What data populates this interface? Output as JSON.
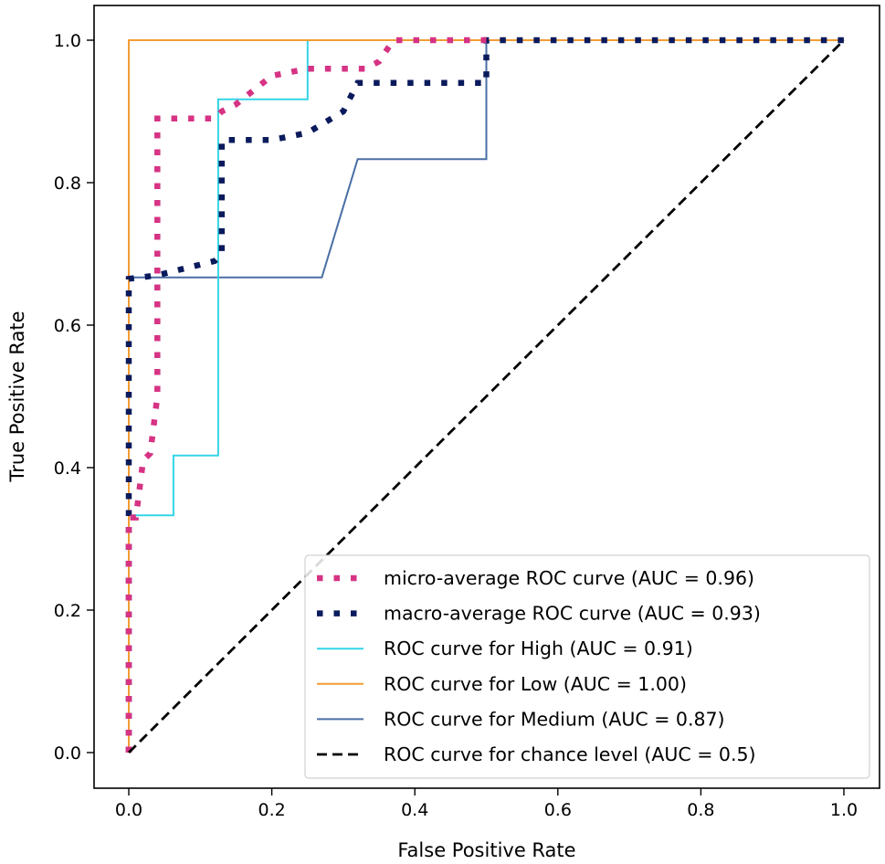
{
  "chart_data": {
    "type": "line",
    "title": "",
    "xlabel": "False Positive Rate",
    "ylabel": "True Positive Rate",
    "xlim": [
      0.0,
      1.0
    ],
    "ylim": [
      0.0,
      1.0
    ],
    "xticks": [
      "0.0",
      "0.2",
      "0.4",
      "0.6",
      "0.8",
      "1.0"
    ],
    "yticks": [
      "0.0",
      "0.2",
      "0.4",
      "0.6",
      "0.8",
      "1.0"
    ],
    "grid": false,
    "legend_position": "lower-right",
    "series": [
      {
        "name": "micro-average ROC curve (AUC = 0.96)",
        "style": "dotted",
        "color": "#d63384",
        "x": [
          0.0,
          0.0,
          0.0,
          0.0,
          0.01,
          0.02,
          0.03,
          0.04,
          0.04,
          0.04,
          0.05,
          0.12,
          0.13,
          0.15,
          0.2,
          0.25,
          0.3,
          0.33,
          0.35,
          0.37,
          0.5
        ],
        "y": [
          0.0,
          0.33,
          0.33,
          0.33,
          0.33,
          0.41,
          0.42,
          0.5,
          0.88,
          0.89,
          0.89,
          0.89,
          0.9,
          0.91,
          0.95,
          0.96,
          0.96,
          0.96,
          0.97,
          1.0,
          1.0
        ]
      },
      {
        "name": "macro-average ROC curve (AUC = 0.93)",
        "style": "dotted",
        "color": "#0a1a5c",
        "x": [
          0.0,
          0.0,
          0.04,
          0.08,
          0.12,
          0.13,
          0.13,
          0.2,
          0.25,
          0.3,
          0.32,
          0.5,
          0.5,
          1.0
        ],
        "y": [
          0.0,
          0.665,
          0.67,
          0.68,
          0.69,
          0.7,
          0.86,
          0.86,
          0.87,
          0.9,
          0.94,
          0.94,
          1.0,
          1.0
        ]
      },
      {
        "name": "ROC curve for High (AUC = 0.91)",
        "style": "solid",
        "color": "#33d6e6",
        "x": [
          0.0,
          0.0,
          0.0625,
          0.0625,
          0.125,
          0.125,
          0.25,
          0.25,
          1.0
        ],
        "y": [
          0.0,
          0.333,
          0.333,
          0.417,
          0.417,
          0.917,
          0.917,
          1.0,
          1.0
        ]
      },
      {
        "name": "ROC curve for Low (AUC = 1.00)",
        "style": "solid",
        "color": "#f39c34",
        "x": [
          0.0,
          0.0,
          0.0,
          1.0
        ],
        "y": [
          0.0,
          0.667,
          1.0,
          1.0
        ]
      },
      {
        "name": "ROC curve for Medium (AUC = 0.87)",
        "style": "solid",
        "color": "#4a6fa5",
        "x": [
          0.0,
          0.0,
          0.27,
          0.32,
          0.5,
          0.5,
          1.0
        ],
        "y": [
          0.0,
          0.667,
          0.667,
          0.833,
          0.833,
          1.0,
          1.0
        ]
      },
      {
        "name": "ROC curve for chance level (AUC = 0.5)",
        "style": "dashed",
        "color": "#000000",
        "x": [
          0.0,
          1.0
        ],
        "y": [
          0.0,
          1.0
        ]
      }
    ]
  }
}
